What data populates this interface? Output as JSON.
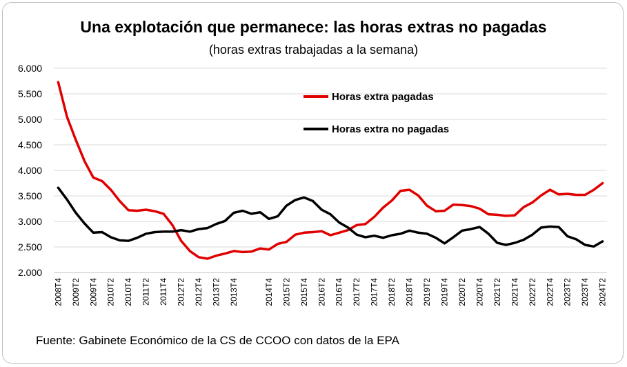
{
  "chart_data": {
    "type": "line",
    "title": "Una explotación que permanece: las horas extras no pagadas",
    "subtitle": "(horas extras trabajadas  a la semana)",
    "source": "Fuente: Gabinete Económico de la CS de CCOO con datos de la EPA",
    "ylim": [
      2000,
      6000
    ],
    "yticks": [
      2000,
      2500,
      3000,
      3500,
      4000,
      4500,
      5000,
      5500,
      6000
    ],
    "ytick_labels": [
      "2.000",
      "2.500",
      "3.000",
      "3.500",
      "4.000",
      "4.500",
      "5.000",
      "5.500",
      "6.000"
    ],
    "x": [
      "2008T4",
      "2009T1",
      "2009T2",
      "2009T3",
      "2009T4",
      "2010T1",
      "2010T2",
      "2010T3",
      "2010T4",
      "2011T1",
      "2011T2",
      "2011T3",
      "2011T4",
      "2012T1",
      "2012T2",
      "2012T3",
      "2012T4",
      "2013T1",
      "2013T2",
      "2013T3",
      "2013T4",
      "2014T1",
      "2014T2",
      "2014T3",
      "2014T4",
      "2015T1",
      "2015T2",
      "2015T3",
      "2015T4",
      "2016T1",
      "2016T2",
      "2016T3",
      "2016T4",
      "2017T1",
      "2017T2",
      "2017T3",
      "2017T4",
      "2018T1",
      "2018T2",
      "2018T3",
      "2018T4",
      "2019T1",
      "2019T2",
      "2019T3",
      "2019T4",
      "2020T1",
      "2020T2",
      "2020T3",
      "2020T4",
      "2021T1",
      "2021T2",
      "2021T3",
      "2021T4",
      "2022T1",
      "2022T2",
      "2022T3",
      "2022T4",
      "2023T1",
      "2023T2",
      "2023T3",
      "2023T4",
      "2024T1",
      "2024T2"
    ],
    "x_tick_labels": [
      "2008T4",
      "2009T2",
      "2009T4",
      "2010T2",
      "2010T4",
      "2011T2",
      "2011T4",
      "2012T2",
      "2012T4",
      "2013T2",
      "2013T4",
      "2014T4",
      "2015T2",
      "2015T4",
      "2016T2",
      "2016T4",
      "2017T2",
      "2017T4",
      "2018T2",
      "2018T4",
      "2019T2",
      "2019T4",
      "2020T2",
      "2020T4",
      "2021T2",
      "2021T4",
      "2022T2",
      "2022T4",
      "2023T2",
      "2023T4",
      "2024T2"
    ],
    "series": [
      {
        "name": "Horas extra pagadas",
        "color": "#e00000",
        "values": [
          5730,
          5050,
          4600,
          4180,
          3860,
          3790,
          3620,
          3400,
          3220,
          3210,
          3230,
          3200,
          3150,
          2930,
          2620,
          2420,
          2300,
          2270,
          2330,
          2370,
          2420,
          2400,
          2410,
          2470,
          2450,
          2560,
          2600,
          2740,
          2780,
          2790,
          2810,
          2730,
          2780,
          2830,
          2930,
          2950,
          3090,
          3270,
          3410,
          3600,
          3620,
          3510,
          3310,
          3200,
          3210,
          3330,
          3320,
          3300,
          3250,
          3140,
          3130,
          3110,
          3120,
          3280,
          3370,
          3510,
          3620,
          3530,
          3540,
          3520,
          3520,
          3620,
          3750
        ]
      },
      {
        "name": "Horas extra no pagadas",
        "color": "#000000",
        "values": [
          3660,
          3430,
          3170,
          2960,
          2780,
          2790,
          2690,
          2630,
          2620,
          2680,
          2760,
          2790,
          2800,
          2800,
          2830,
          2800,
          2850,
          2870,
          2950,
          3010,
          3170,
          3210,
          3150,
          3180,
          3050,
          3100,
          3310,
          3420,
          3470,
          3400,
          3230,
          3140,
          2980,
          2880,
          2740,
          2690,
          2720,
          2680,
          2730,
          2760,
          2820,
          2780,
          2760,
          2680,
          2570,
          2690,
          2820,
          2850,
          2890,
          2760,
          2580,
          2540,
          2580,
          2640,
          2740,
          2880,
          2900,
          2890,
          2710,
          2650,
          2540,
          2510,
          2610
        ]
      }
    ],
    "legend": [
      {
        "label": "Horas extra pagadas",
        "color": "#e00000"
      },
      {
        "label": "Horas extra no pagadas",
        "color": "#000000"
      }
    ],
    "grid": true
  }
}
